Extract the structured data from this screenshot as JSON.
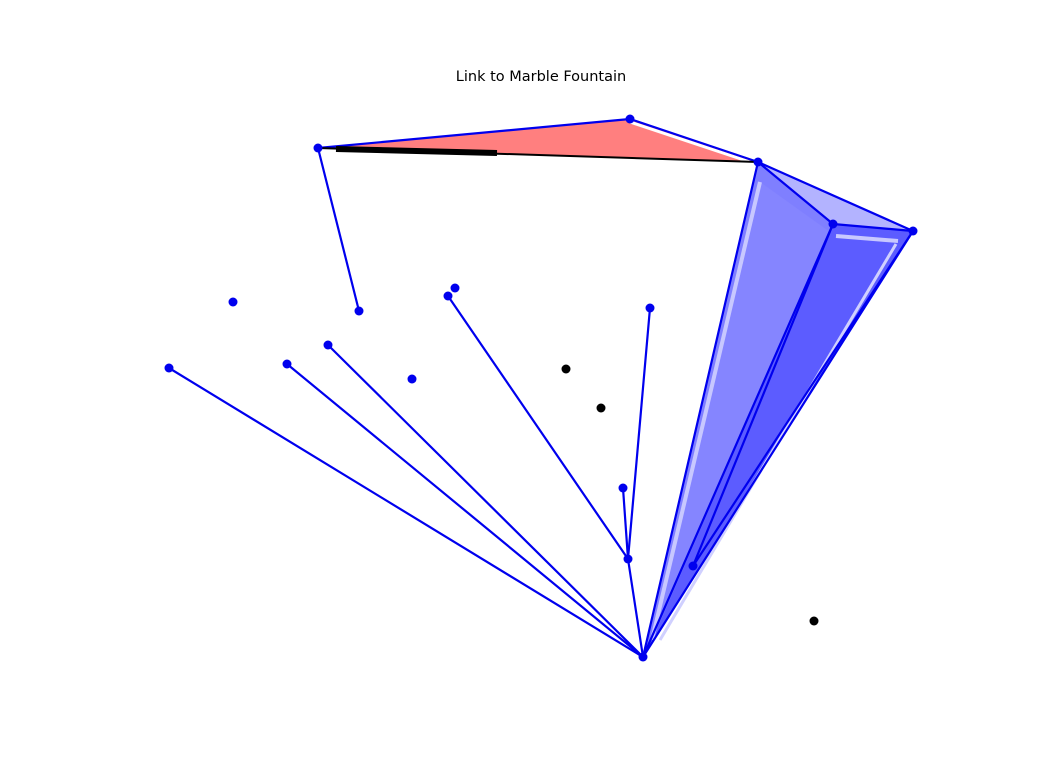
{
  "title": "Link to Marble Fountain",
  "colors": {
    "edge": "#0000ee",
    "node": "#0000ee",
    "landmark": "#000000",
    "red_face": "#ff7f7f",
    "blue_face_light": "#7f7fff",
    "blue_face_mid": "#5c5cff",
    "blue_face_pale": "#b3b3ff",
    "highlight": "#ffffff"
  }
}
